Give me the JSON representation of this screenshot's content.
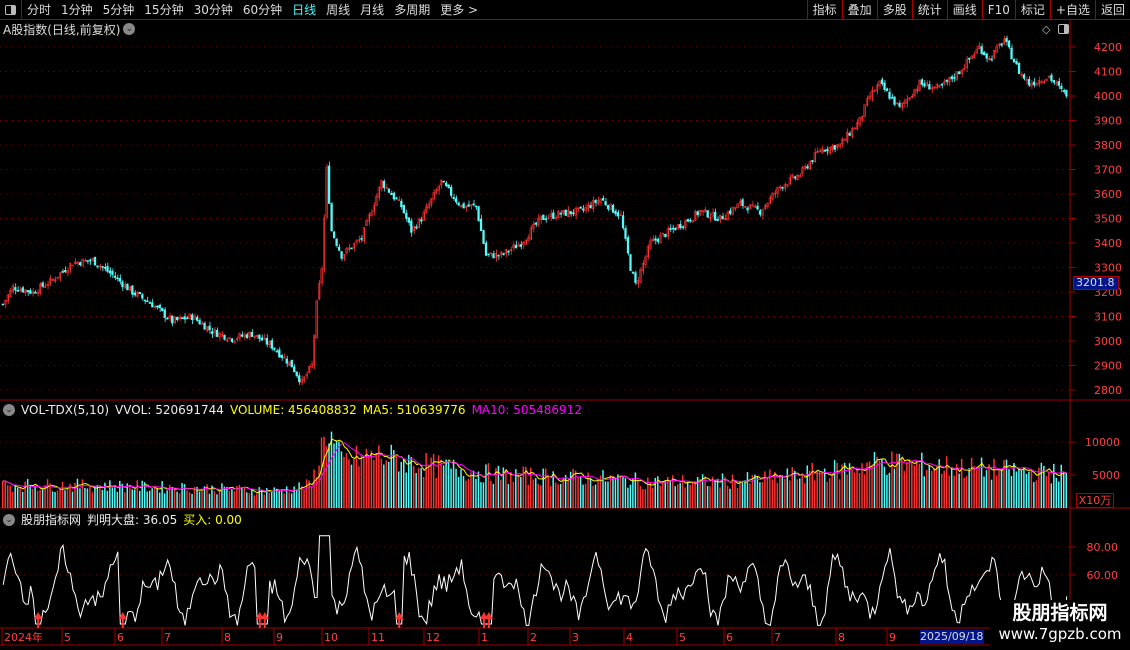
{
  "toolbar": {
    "periods": [
      "分时",
      "1分钟",
      "5分钟",
      "15分钟",
      "30分钟",
      "60分钟",
      "日线",
      "周线",
      "月线",
      "多周期",
      "更多 >"
    ],
    "active_period": "日线",
    "buttons": [
      "指标",
      "叠加",
      "多股",
      "统计",
      "画线",
      "F10",
      "标记",
      "+自选",
      "返回"
    ]
  },
  "header": {
    "title": "A股指数(日线,前复权)",
    "collapse_icon": "chevron-down-icon"
  },
  "price_panel": {
    "y_ticks": [
      "4200",
      "4100",
      "4000",
      "3900",
      "3800",
      "3700",
      "3600",
      "3500",
      "3400",
      "3300",
      "3200",
      "3100",
      "3000",
      "2900",
      "2800"
    ],
    "current_price": "3201.8"
  },
  "volume_panel": {
    "name": "VOL-TDX(5,10)",
    "vvol": "VVOL: 520691744",
    "volume": "VOLUME: 456408832",
    "ma5": "MA5: 510639776",
    "ma10": "MA10: 505486912",
    "y_ticks": [
      "10000",
      "5000"
    ],
    "unit": "X10万"
  },
  "indicator_panel": {
    "name": "股朋指标网",
    "judge": "判明大盘: 36.05",
    "buy": "买入: 0.00",
    "y_ticks": [
      "80.00",
      "60.00"
    ]
  },
  "date_axis": {
    "labels": [
      "2024年",
      "5",
      "6",
      "7",
      "8",
      "9",
      "10",
      "11",
      "12",
      "1",
      "2",
      "3",
      "4",
      "5",
      "6",
      "7",
      "8",
      "9"
    ],
    "cursor_date": "2025/09/18"
  },
  "watermark": {
    "line1": "股朋指标网",
    "line2": "www.7gpzb.com"
  },
  "colors": {
    "up": "#ff3232",
    "down": "#54fcfc",
    "ma5": "#ffff00",
    "ma10": "#ff00ff",
    "grid": "#a00000",
    "axis_text": "#ff4040"
  },
  "chart_data": {
    "type": "candlestick",
    "price_ylim": [
      2800,
      4200
    ],
    "days": 428,
    "close_keypoints": [
      [
        0,
        3150
      ],
      [
        4,
        3220
      ],
      [
        12,
        3200
      ],
      [
        20,
        3250
      ],
      [
        28,
        3320
      ],
      [
        36,
        3330
      ],
      [
        44,
        3270
      ],
      [
        52,
        3200
      ],
      [
        60,
        3150
      ],
      [
        68,
        3080
      ],
      [
        76,
        3100
      ],
      [
        84,
        3040
      ],
      [
        92,
        3010
      ],
      [
        100,
        3030
      ],
      [
        108,
        2980
      ],
      [
        116,
        2900
      ],
      [
        120,
        2830
      ],
      [
        124,
        2900
      ],
      [
        126,
        3150
      ],
      [
        128,
        3300
      ],
      [
        130,
        3700
      ],
      [
        132,
        3450
      ],
      [
        136,
        3350
      ],
      [
        144,
        3420
      ],
      [
        152,
        3650
      ],
      [
        160,
        3550
      ],
      [
        164,
        3450
      ],
      [
        168,
        3500
      ],
      [
        176,
        3650
      ],
      [
        184,
        3550
      ],
      [
        190,
        3550
      ],
      [
        194,
        3350
      ],
      [
        200,
        3350
      ],
      [
        208,
        3400
      ],
      [
        216,
        3500
      ],
      [
        224,
        3520
      ],
      [
        232,
        3530
      ],
      [
        240,
        3580
      ],
      [
        248,
        3510
      ],
      [
        252,
        3300
      ],
      [
        254,
        3230
      ],
      [
        260,
        3400
      ],
      [
        268,
        3450
      ],
      [
        276,
        3500
      ],
      [
        280,
        3530
      ],
      [
        288,
        3500
      ],
      [
        296,
        3560
      ],
      [
        304,
        3530
      ],
      [
        312,
        3630
      ],
      [
        320,
        3680
      ],
      [
        328,
        3780
      ],
      [
        336,
        3800
      ],
      [
        344,
        3900
      ],
      [
        348,
        4000
      ],
      [
        352,
        4050
      ],
      [
        360,
        3950
      ],
      [
        368,
        4050
      ],
      [
        376,
        4030
      ],
      [
        384,
        4100
      ],
      [
        392,
        4200
      ],
      [
        396,
        4150
      ],
      [
        402,
        4230
      ],
      [
        408,
        4100
      ],
      [
        412,
        4050
      ],
      [
        420,
        4080
      ],
      [
        426,
        4010
      ]
    ],
    "volume_ylim": [
      0,
      15000
    ],
    "volume_keypoints": [
      [
        0,
        3500
      ],
      [
        40,
        3400
      ],
      [
        80,
        3000
      ],
      [
        110,
        2600
      ],
      [
        124,
        3500
      ],
      [
        130,
        12000
      ],
      [
        136,
        7000
      ],
      [
        150,
        8000
      ],
      [
        170,
        6500
      ],
      [
        180,
        6000
      ],
      [
        200,
        5000
      ],
      [
        240,
        4500
      ],
      [
        260,
        4000
      ],
      [
        280,
        4000
      ],
      [
        300,
        4200
      ],
      [
        320,
        5000
      ],
      [
        340,
        6000
      ],
      [
        352,
        7000
      ],
      [
        370,
        6500
      ],
      [
        390,
        6000
      ],
      [
        426,
        5200
      ]
    ],
    "indicator_ylim": [
      20,
      100
    ],
    "buy_signal_days": [
      14,
      48,
      103,
      105,
      159,
      193,
      195
    ]
  }
}
